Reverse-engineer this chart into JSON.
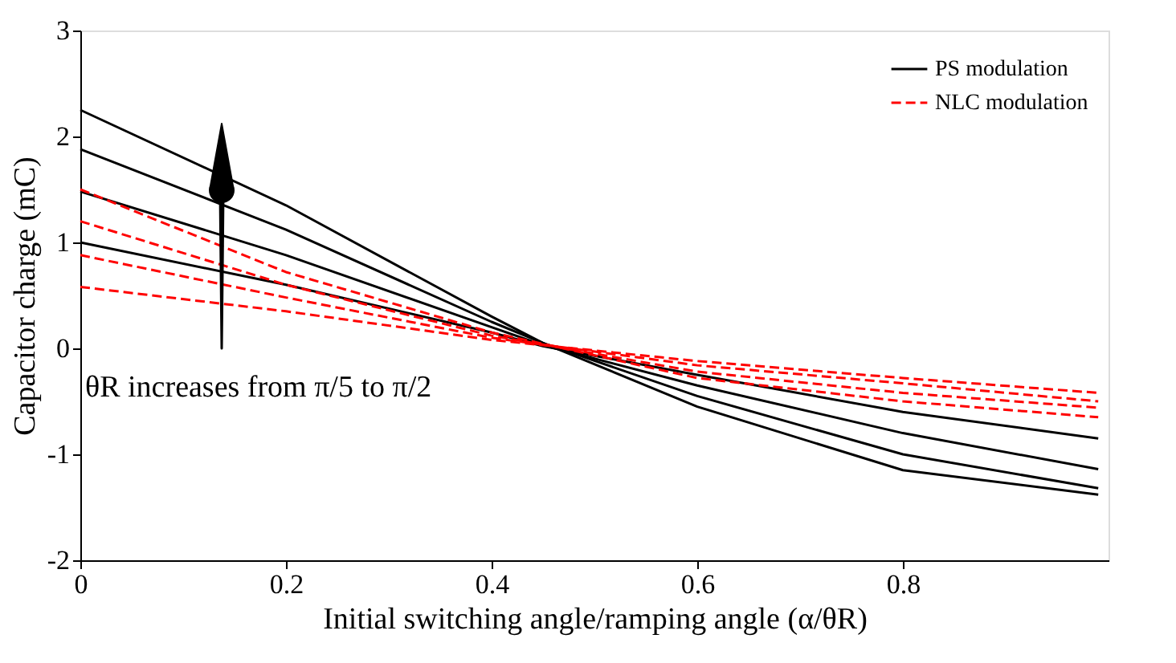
{
  "chart_data": {
    "type": "line",
    "xlabel": "Initial switching angle/ramping angle (α/θR)",
    "ylabel": "Capacitor charge (mC)",
    "xlim": [
      0,
      1
    ],
    "ylim": [
      -2,
      3
    ],
    "xticks": [
      0,
      0.2,
      0.4,
      0.6,
      0.8
    ],
    "yticks": [
      -2,
      -1,
      0,
      1,
      2,
      3
    ],
    "grid": false,
    "legend": "top right",
    "annotations": [
      "θR increases from π/5 to π/2"
    ],
    "series": [
      {
        "name": "PS modulation",
        "color": "#000000",
        "line_style": "solid",
        "x": [
          0,
          0.2,
          0.4,
          0.45,
          0.6,
          0.8,
          0.99
        ],
        "values": [
          1.0,
          0.6,
          0.15,
          0.02,
          -0.25,
          -0.6,
          -0.85
        ]
      },
      {
        "color": "#000000",
        "line_style": "solid",
        "x": [
          0,
          0.2,
          0.4,
          0.45,
          0.6,
          0.8,
          0.99
        ],
        "values": [
          1.48,
          0.88,
          0.2,
          0.03,
          -0.35,
          -0.8,
          -1.14
        ]
      },
      {
        "color": "#000000",
        "line_style": "solid",
        "x": [
          0,
          0.2,
          0.4,
          0.45,
          0.6,
          0.8,
          0.99
        ],
        "values": [
          1.88,
          1.12,
          0.25,
          0.05,
          -0.45,
          -1.0,
          -1.32
        ]
      },
      {
        "color": "#000000",
        "line_style": "solid",
        "x": [
          0,
          0.2,
          0.4,
          0.45,
          0.6,
          0.8,
          0.99
        ],
        "values": [
          2.25,
          1.35,
          0.3,
          0.05,
          -0.55,
          -1.15,
          -1.38
        ]
      },
      {
        "name": "NLC modulation",
        "color": "#ff0000",
        "line_style": "dashed",
        "x": [
          0,
          0.2,
          0.4,
          0.6,
          0.8,
          0.99
        ],
        "values": [
          0.58,
          0.35,
          0.08,
          -0.12,
          -0.28,
          -0.42
        ]
      },
      {
        "color": "#ff0000",
        "line_style": "dashed",
        "x": [
          0,
          0.2,
          0.4,
          0.6,
          0.8,
          0.99
        ],
        "values": [
          0.88,
          0.48,
          0.1,
          -0.16,
          -0.33,
          -0.5
        ]
      },
      {
        "color": "#ff0000",
        "line_style": "dashed",
        "x": [
          0,
          0.2,
          0.4,
          0.6,
          0.8,
          0.99
        ],
        "values": [
          1.2,
          0.6,
          0.12,
          -0.22,
          -0.42,
          -0.56
        ]
      },
      {
        "color": "#ff0000",
        "line_style": "dashed",
        "x": [
          0,
          0.2,
          0.4,
          0.6,
          0.8,
          0.99
        ],
        "values": [
          1.5,
          0.72,
          0.15,
          -0.28,
          -0.5,
          -0.65
        ]
      }
    ]
  }
}
